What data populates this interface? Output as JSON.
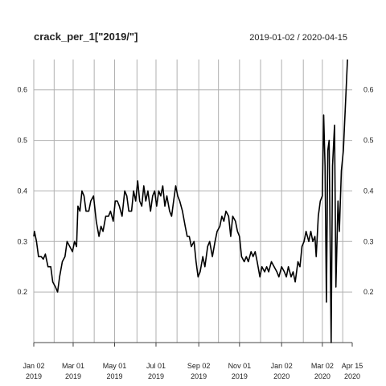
{
  "chart_data": {
    "type": "line",
    "title": "crack_per_1[\"2019/\"]",
    "date_range": "2019-01-02 / 2020-04-15",
    "xlim": [
      "2019-01-02",
      "2020-04-15"
    ],
    "ylim": [
      0.1,
      0.66
    ],
    "y_ticks": [
      "0.2",
      "0.3",
      "0.4",
      "0.5",
      "0.6"
    ],
    "x_ticks": [
      {
        "date": "2019-01-02",
        "label1": "Jan 02",
        "label2": "2019"
      },
      {
        "date": "2019-03-01",
        "label1": "Mar 01",
        "label2": "2019"
      },
      {
        "date": "2019-05-01",
        "label1": "May 01",
        "label2": "2019"
      },
      {
        "date": "2019-07-01",
        "label1": "Jul 01",
        "label2": "2019"
      },
      {
        "date": "2019-09-02",
        "label1": "Sep 02",
        "label2": "2019"
      },
      {
        "date": "2019-11-01",
        "label1": "Nov 01",
        "label2": "2019"
      },
      {
        "date": "2020-01-02",
        "label1": "Jan 02",
        "label2": "2020"
      },
      {
        "date": "2020-03-02",
        "label1": "Mar 02",
        "label2": "2020"
      },
      {
        "date": "2020-04-15",
        "label1": "Apr 15",
        "label2": "2020"
      }
    ],
    "gridlines": [
      "2019-01-02",
      "2019-02-01",
      "2019-03-01",
      "2019-04-01",
      "2019-05-01",
      "2019-06-03",
      "2019-07-01",
      "2019-08-01",
      "2019-09-02",
      "2019-10-01",
      "2019-11-01",
      "2019-12-02",
      "2020-01-02",
      "2020-02-03",
      "2020-03-02",
      "2020-04-01"
    ],
    "grid": true,
    "series": [
      {
        "color": "#000000",
        "points": [
          [
            "2019-01-02",
            0.31
          ],
          [
            "2019-01-03",
            0.32
          ],
          [
            "2019-01-06",
            0.3
          ],
          [
            "2019-01-09",
            0.27
          ],
          [
            "2019-01-13",
            0.27
          ],
          [
            "2019-01-16",
            0.265
          ],
          [
            "2019-01-19",
            0.275
          ],
          [
            "2019-01-23",
            0.25
          ],
          [
            "2019-01-27",
            0.25
          ],
          [
            "2019-01-30",
            0.22
          ],
          [
            "2019-02-03",
            0.21
          ],
          [
            "2019-02-06",
            0.2
          ],
          [
            "2019-02-09",
            0.23
          ],
          [
            "2019-02-13",
            0.26
          ],
          [
            "2019-02-17",
            0.27
          ],
          [
            "2019-02-20",
            0.3
          ],
          [
            "2019-02-24",
            0.29
          ],
          [
            "2019-02-28",
            0.28
          ],
          [
            "2019-03-03",
            0.3
          ],
          [
            "2019-03-06",
            0.29
          ],
          [
            "2019-03-08",
            0.37
          ],
          [
            "2019-03-11",
            0.36
          ],
          [
            "2019-03-14",
            0.4
          ],
          [
            "2019-03-17",
            0.39
          ],
          [
            "2019-03-20",
            0.36
          ],
          [
            "2019-03-24",
            0.36
          ],
          [
            "2019-03-27",
            0.38
          ],
          [
            "2019-03-31",
            0.39
          ],
          [
            "2019-04-04",
            0.34
          ],
          [
            "2019-04-08",
            0.31
          ],
          [
            "2019-04-11",
            0.33
          ],
          [
            "2019-04-14",
            0.32
          ],
          [
            "2019-04-18",
            0.35
          ],
          [
            "2019-04-22",
            0.35
          ],
          [
            "2019-04-25",
            0.36
          ],
          [
            "2019-04-29",
            0.34
          ],
          [
            "2019-05-02",
            0.38
          ],
          [
            "2019-05-05",
            0.38
          ],
          [
            "2019-05-08",
            0.37
          ],
          [
            "2019-05-12",
            0.35
          ],
          [
            "2019-05-16",
            0.4
          ],
          [
            "2019-05-19",
            0.39
          ],
          [
            "2019-05-22",
            0.36
          ],
          [
            "2019-05-26",
            0.36
          ],
          [
            "2019-05-29",
            0.4
          ],
          [
            "2019-06-01",
            0.38
          ],
          [
            "2019-06-04",
            0.42
          ],
          [
            "2019-06-07",
            0.38
          ],
          [
            "2019-06-10",
            0.37
          ],
          [
            "2019-06-13",
            0.41
          ],
          [
            "2019-06-16",
            0.38
          ],
          [
            "2019-06-19",
            0.4
          ],
          [
            "2019-06-23",
            0.36
          ],
          [
            "2019-06-26",
            0.39
          ],
          [
            "2019-06-29",
            0.4
          ],
          [
            "2019-07-02",
            0.37
          ],
          [
            "2019-07-05",
            0.4
          ],
          [
            "2019-07-08",
            0.39
          ],
          [
            "2019-07-11",
            0.41
          ],
          [
            "2019-07-14",
            0.37
          ],
          [
            "2019-07-17",
            0.39
          ],
          [
            "2019-07-21",
            0.36
          ],
          [
            "2019-07-24",
            0.35
          ],
          [
            "2019-07-27",
            0.38
          ],
          [
            "2019-07-30",
            0.41
          ],
          [
            "2019-08-02",
            0.39
          ],
          [
            "2019-08-05",
            0.38
          ],
          [
            "2019-08-09",
            0.36
          ],
          [
            "2019-08-13",
            0.33
          ],
          [
            "2019-08-16",
            0.31
          ],
          [
            "2019-08-19",
            0.31
          ],
          [
            "2019-08-22",
            0.29
          ],
          [
            "2019-08-26",
            0.3
          ],
          [
            "2019-08-29",
            0.26
          ],
          [
            "2019-09-01",
            0.23
          ],
          [
            "2019-09-04",
            0.24
          ],
          [
            "2019-09-08",
            0.27
          ],
          [
            "2019-09-11",
            0.25
          ],
          [
            "2019-09-15",
            0.29
          ],
          [
            "2019-09-18",
            0.3
          ],
          [
            "2019-09-22",
            0.27
          ],
          [
            "2019-09-26",
            0.3
          ],
          [
            "2019-09-29",
            0.32
          ],
          [
            "2019-10-03",
            0.33
          ],
          [
            "2019-10-06",
            0.35
          ],
          [
            "2019-10-09",
            0.34
          ],
          [
            "2019-10-12",
            0.36
          ],
          [
            "2019-10-16",
            0.35
          ],
          [
            "2019-10-19",
            0.31
          ],
          [
            "2019-10-22",
            0.35
          ],
          [
            "2019-10-26",
            0.34
          ],
          [
            "2019-10-29",
            0.32
          ],
          [
            "2019-11-01",
            0.31
          ],
          [
            "2019-11-04",
            0.27
          ],
          [
            "2019-11-08",
            0.26
          ],
          [
            "2019-11-11",
            0.27
          ],
          [
            "2019-11-14",
            0.26
          ],
          [
            "2019-11-18",
            0.28
          ],
          [
            "2019-11-21",
            0.27
          ],
          [
            "2019-11-24",
            0.28
          ],
          [
            "2019-11-27",
            0.26
          ],
          [
            "2019-12-01",
            0.23
          ],
          [
            "2019-12-04",
            0.25
          ],
          [
            "2019-12-08",
            0.24
          ],
          [
            "2019-12-11",
            0.25
          ],
          [
            "2019-12-14",
            0.24
          ],
          [
            "2019-12-18",
            0.26
          ],
          [
            "2019-12-22",
            0.25
          ],
          [
            "2019-12-26",
            0.24
          ],
          [
            "2019-12-29",
            0.23
          ],
          [
            "2020-01-02",
            0.25
          ],
          [
            "2020-01-06",
            0.24
          ],
          [
            "2020-01-09",
            0.23
          ],
          [
            "2020-01-12",
            0.25
          ],
          [
            "2020-01-16",
            0.23
          ],
          [
            "2020-01-19",
            0.24
          ],
          [
            "2020-01-22",
            0.22
          ],
          [
            "2020-01-26",
            0.26
          ],
          [
            "2020-01-29",
            0.25
          ],
          [
            "2020-02-01",
            0.29
          ],
          [
            "2020-02-04",
            0.3
          ],
          [
            "2020-02-07",
            0.32
          ],
          [
            "2020-02-11",
            0.3
          ],
          [
            "2020-02-14",
            0.32
          ],
          [
            "2020-02-17",
            0.3
          ],
          [
            "2020-02-20",
            0.31
          ],
          [
            "2020-02-22",
            0.27
          ],
          [
            "2020-02-25",
            0.35
          ],
          [
            "2020-02-28",
            0.38
          ],
          [
            "2020-03-02",
            0.39
          ],
          [
            "2020-03-04",
            0.55
          ],
          [
            "2020-03-06",
            0.45
          ],
          [
            "2020-03-08",
            0.18
          ],
          [
            "2020-03-10",
            0.48
          ],
          [
            "2020-03-12",
            0.5
          ],
          [
            "2020-03-15",
            0.1
          ],
          [
            "2020-03-17",
            0.45
          ],
          [
            "2020-03-20",
            0.53
          ],
          [
            "2020-03-22",
            0.21
          ],
          [
            "2020-03-25",
            0.38
          ],
          [
            "2020-03-27",
            0.32
          ],
          [
            "2020-03-30",
            0.44
          ],
          [
            "2020-04-02",
            0.48
          ],
          [
            "2020-04-06",
            0.6
          ],
          [
            "2020-04-08",
            0.66
          ]
        ]
      }
    ]
  }
}
